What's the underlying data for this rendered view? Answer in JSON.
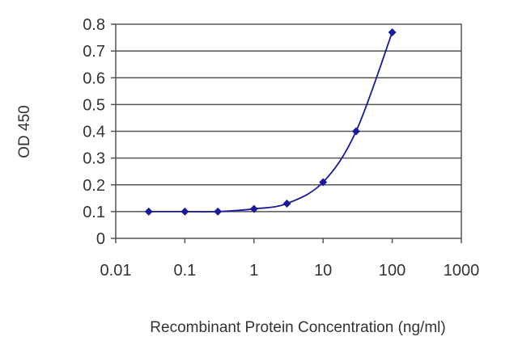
{
  "chart_data": {
    "type": "line",
    "xlabel": "Recombinant Protein Concentration (ng/ml)",
    "ylabel": "OD 450",
    "x_scale": "log",
    "xlim": [
      0.01,
      1000
    ],
    "ylim": [
      0,
      0.8
    ],
    "x_ticks": [
      0.01,
      0.1,
      1,
      10,
      100,
      1000
    ],
    "x_tick_labels": [
      "0.01",
      "0.1",
      "1",
      "10",
      "100",
      "1000"
    ],
    "y_ticks": [
      0,
      0.1,
      0.2,
      0.3,
      0.4,
      0.5,
      0.6,
      0.7,
      0.8
    ],
    "y_tick_labels": [
      "0",
      "0.1",
      "0.2",
      "0.3",
      "0.4",
      "0.5",
      "0.6",
      "0.7",
      "0.8"
    ],
    "grid": "horizontal",
    "series": [
      {
        "color": "#1a1a9c",
        "marker": "diamond",
        "x": [
          0.03,
          0.1,
          0.3,
          1,
          3,
          10,
          30,
          100
        ],
        "y": [
          0.1,
          0.1,
          0.1,
          0.11,
          0.13,
          0.21,
          0.4,
          0.77
        ]
      }
    ]
  }
}
